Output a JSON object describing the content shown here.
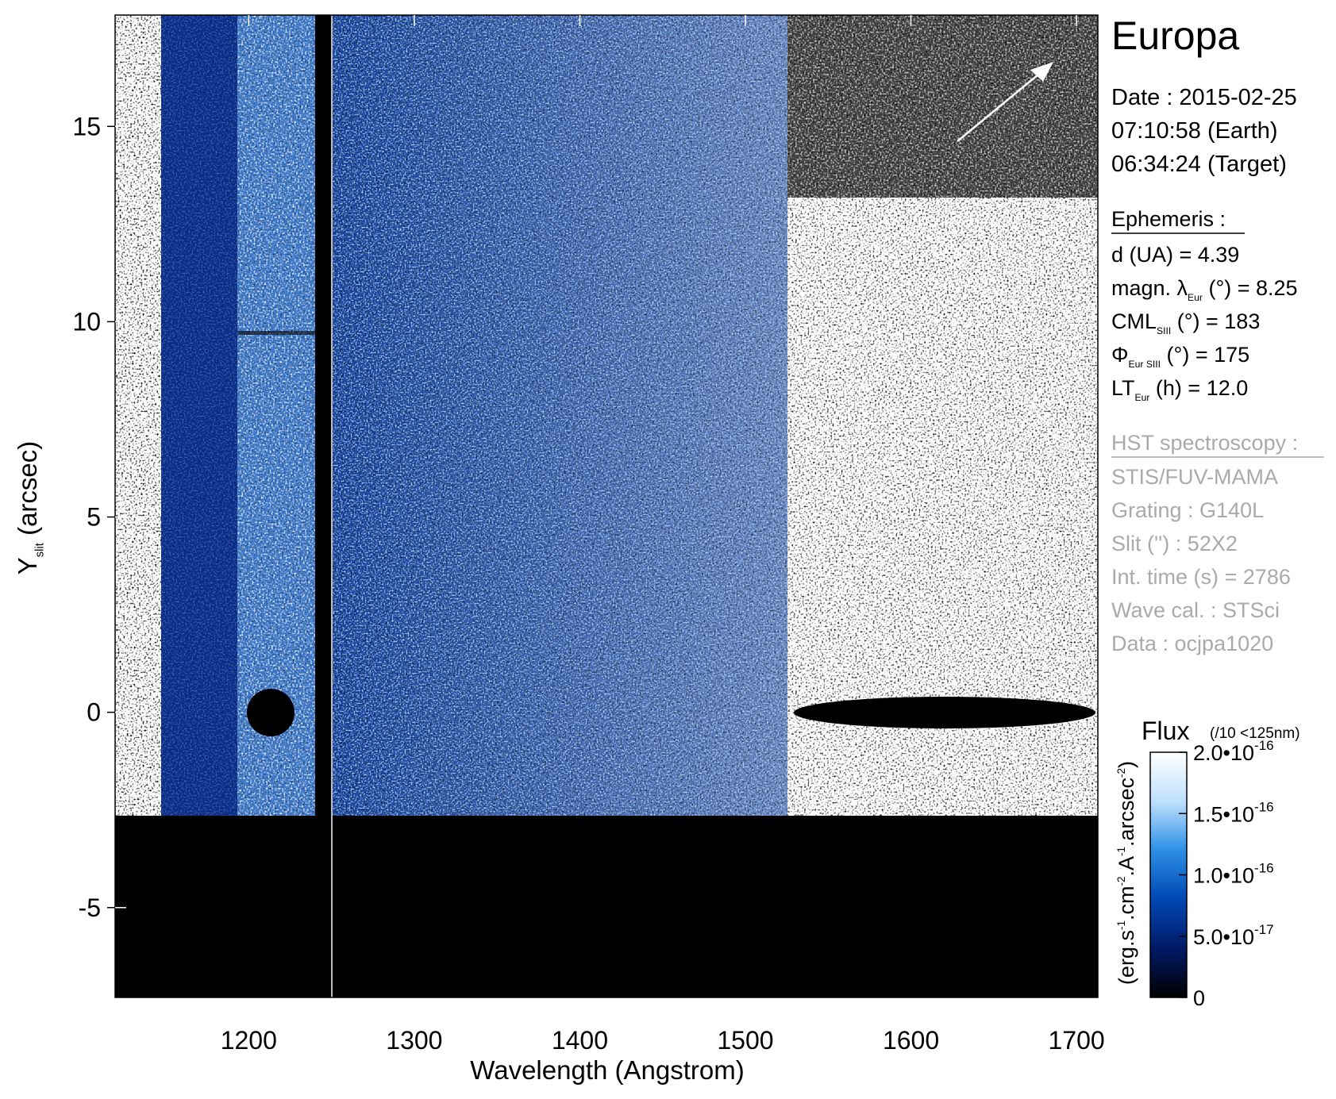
{
  "chart_data": {
    "type": "spectrogram",
    "xlabel": "Wavelength (Angstrom)",
    "ylabel": [
      {
        "t": "Y"
      },
      {
        "sub": "slit"
      },
      {
        "t": " (arcsec)"
      }
    ],
    "xlim": [
      1119.3,
      1712.9
    ],
    "xticks": [
      1200,
      1300,
      1400,
      1500,
      1600,
      1700
    ],
    "ylim": [
      -7.3,
      17.85
    ],
    "yticks": [
      -5,
      0,
      5,
      10,
      15
    ],
    "colorbar": {
      "title": "Flux",
      "note": "(/10 <125nm)",
      "label": [
        {
          "t": "(erg.s"
        },
        {
          "sup": "-1"
        },
        {
          "t": ".cm"
        },
        {
          "sup": "-2"
        },
        {
          "t": ".A"
        },
        {
          "sup": "-1"
        },
        {
          "t": ".arcsec"
        },
        {
          "sup": "-2"
        },
        {
          "t": ")"
        }
      ],
      "lim": [
        0,
        2e-16
      ],
      "ticks": [
        0,
        {
          "value": 5e-17,
          "label": "5.0•10",
          "sup": "-17"
        },
        {
          "value": 1e-16,
          "label": "1.0•10",
          "sup": "-16"
        },
        {
          "value": 1.5e-16,
          "label": "1.5•10",
          "sup": "-16"
        },
        {
          "value": 2e-16,
          "label": "2.0•10",
          "sup": "-16"
        }
      ],
      "colormap": [
        "#000000",
        "#001a66",
        "#0047b3",
        "#2d8fe6",
        "#bfe0ff",
        "#ffffff"
      ]
    },
    "target": "Europa",
    "date": [
      "Date : 2015-02-25",
      "07:10:58 (Earth)",
      "06:34:24 (Target)"
    ],
    "ephemeris": {
      "heading": "Ephemeris :",
      "lines": [
        [
          {
            "t": "d (UA)     = 4.39"
          }
        ],
        [
          {
            "t": "magn. λ"
          },
          {
            "sub": "Eur"
          },
          {
            "t": " (°)  = 8.25"
          }
        ],
        [
          {
            "t": "CML"
          },
          {
            "sub": "SIII"
          },
          {
            "t": " (°) = 183"
          }
        ],
        [
          {
            "t": "Φ"
          },
          {
            "sub": "Eur SIII"
          },
          {
            "t": " (°) = 175"
          }
        ],
        [
          {
            "t": "LT"
          },
          {
            "sub": "Eur"
          },
          {
            "t": " (h) = 12.0"
          }
        ]
      ]
    },
    "instrument": {
      "heading": "HST spectroscopy :",
      "lines": [
        "STIS/FUV-MAMA",
        "Grating : G140L",
        "Slit ('') : 52X2",
        "Int. time (s) = 2786",
        "Wave cal. : STSci",
        "Data : ocjpa1020"
      ]
    }
  }
}
